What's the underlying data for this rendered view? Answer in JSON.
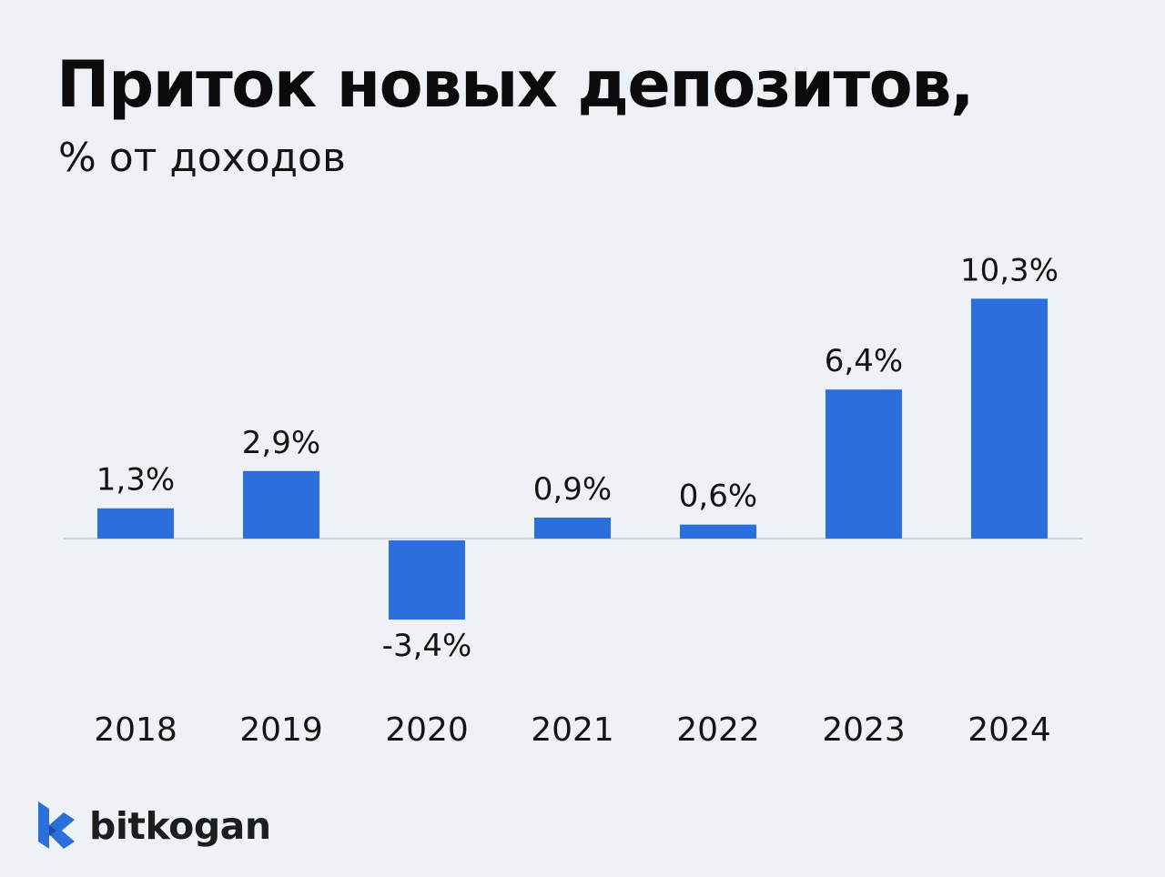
{
  "header": {
    "title": "Приток новых депозитов,",
    "subtitle": "% от доходов"
  },
  "brand": {
    "name": "bitkogan",
    "accent_color": "#2a6fdb"
  },
  "colors": {
    "bar": "#2a6fdb",
    "baseline": "#cfd8e3",
    "background": "#eef2f6",
    "text": "#141414"
  },
  "chart_data": {
    "type": "bar",
    "categories": [
      "2018",
      "2019",
      "2020",
      "2021",
      "2022",
      "2023",
      "2024"
    ],
    "values": [
      1.3,
      2.9,
      -3.4,
      0.9,
      0.6,
      6.4,
      10.3
    ],
    "value_labels": [
      "1,3%",
      "2,9%",
      "-3,4%",
      "0,9%",
      "0,6%",
      "6,4%",
      "10,3%"
    ],
    "title": "Приток новых депозитов,",
    "subtitle": "% от доходов",
    "xlabel": "",
    "ylabel": "",
    "unit": "%",
    "ylim": [
      -3.4,
      10.3
    ],
    "grid": false,
    "legend": "none"
  }
}
